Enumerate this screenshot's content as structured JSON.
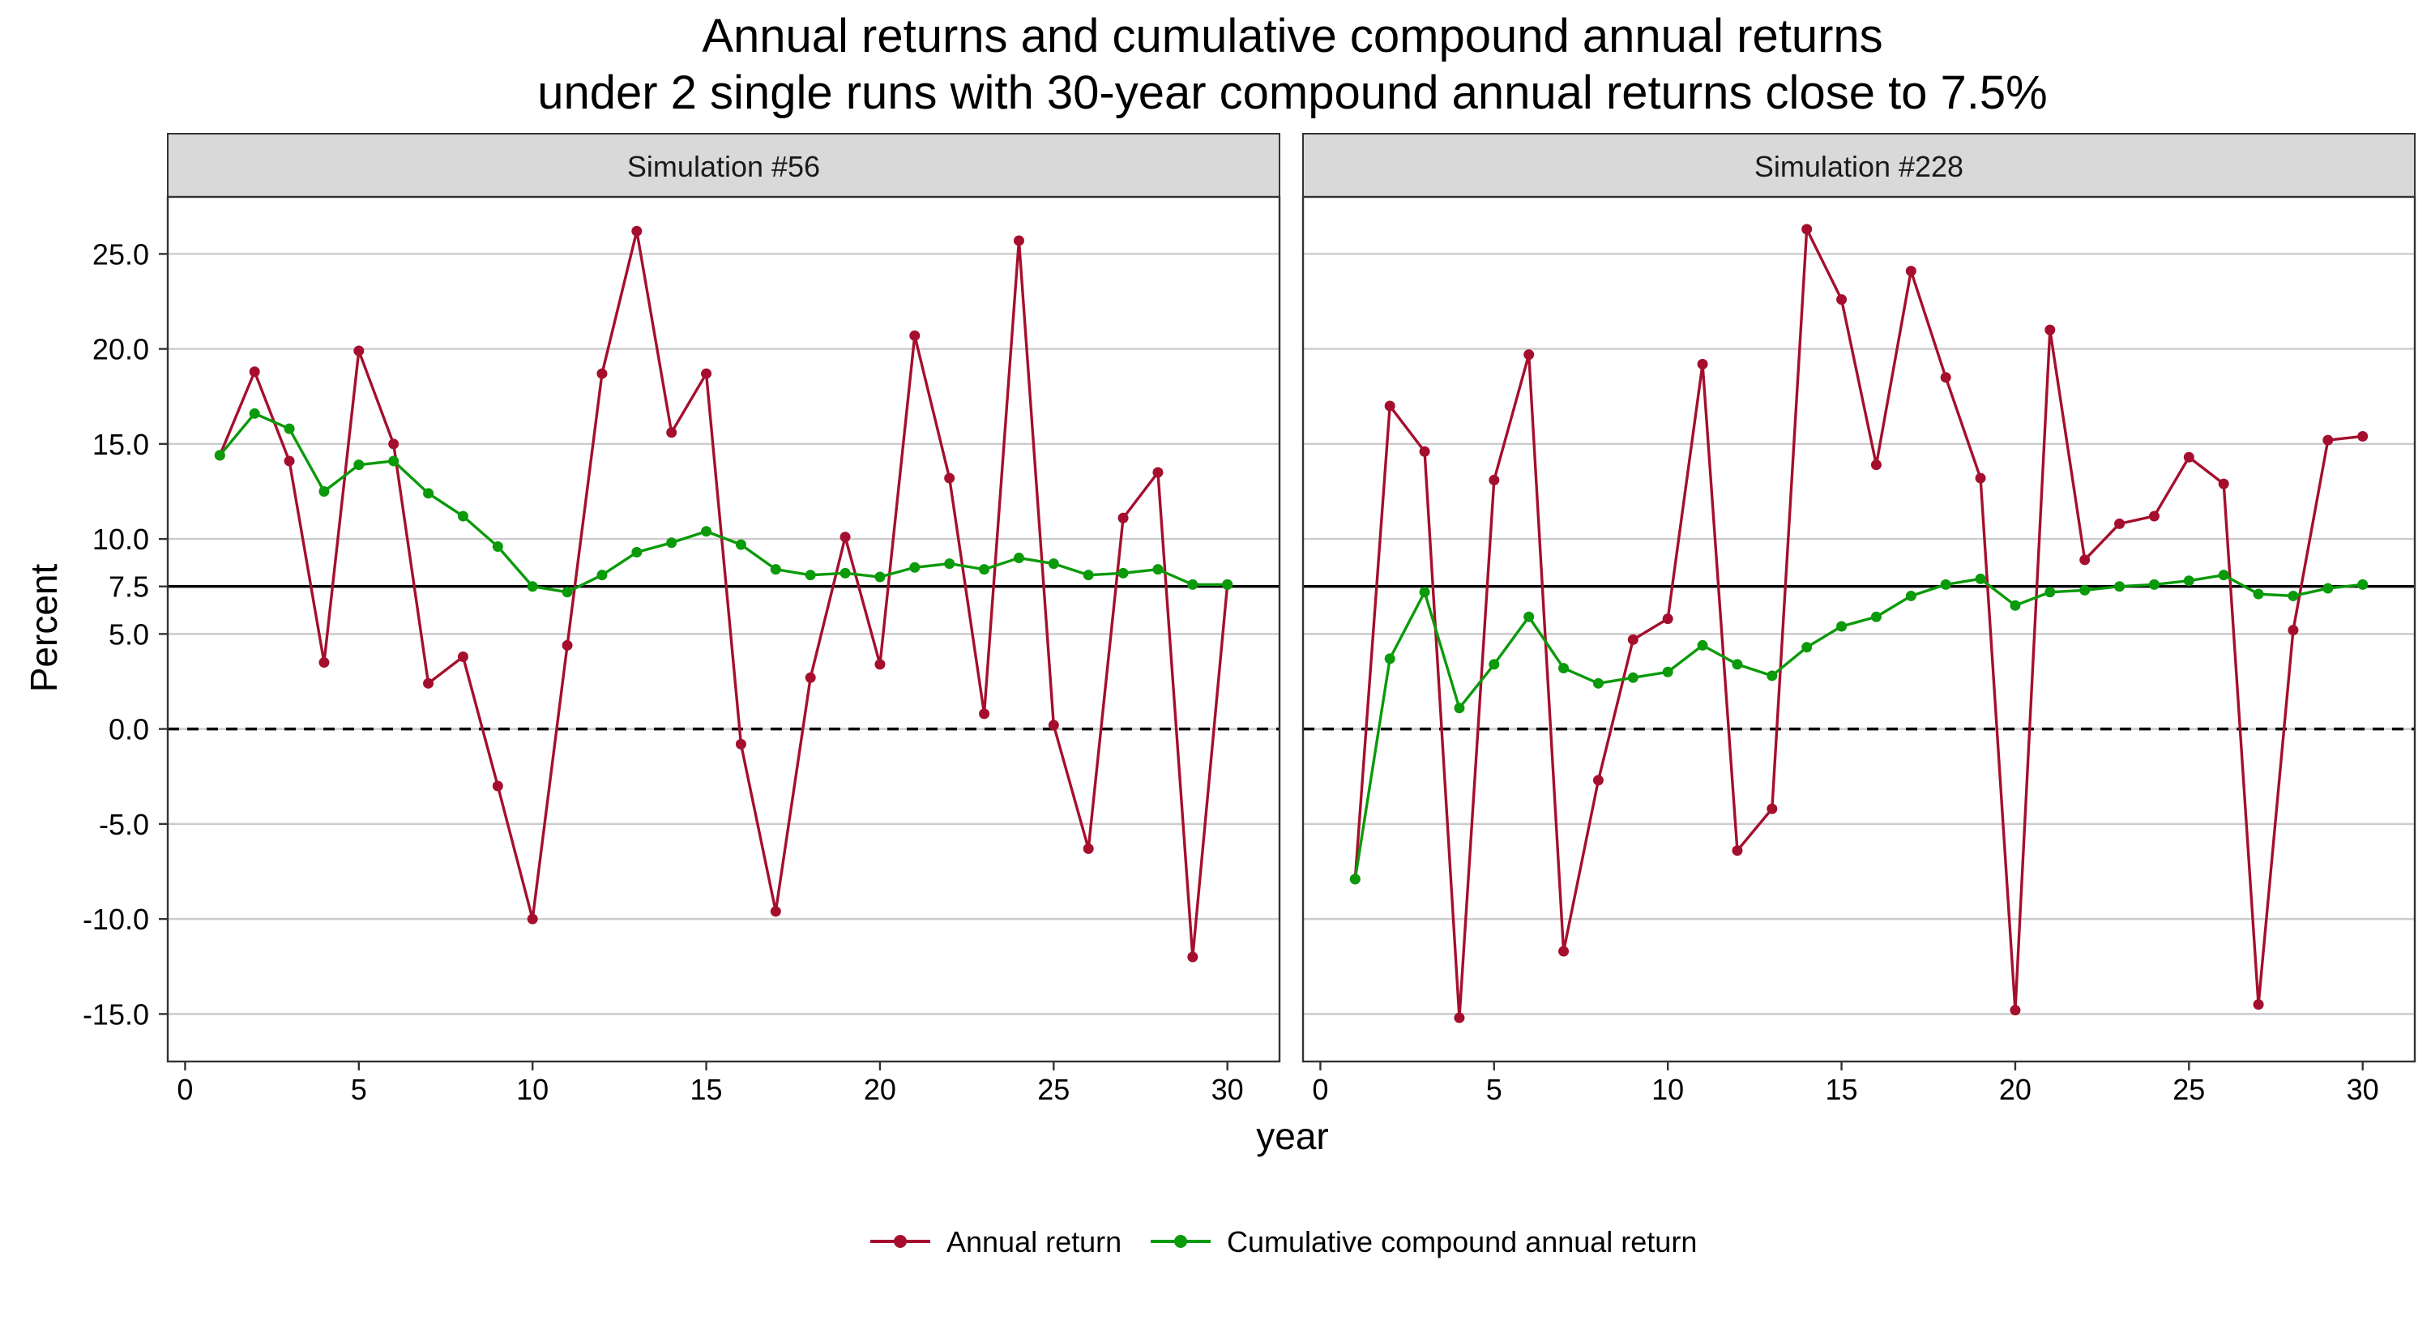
{
  "chart_data": {
    "type": "line",
    "title": "Annual returns and cumulative compound annual returns",
    "subtitle": "under 2 single runs with 30-year compound annual returns close to 7.5%",
    "xlabel": "year",
    "ylabel": "Percent",
    "xlim": [
      -0.5,
      31.5
    ],
    "ylim": [
      -17.5,
      28
    ],
    "x_ticks": [
      0,
      5,
      10,
      15,
      20,
      25,
      30
    ],
    "y_ticks": [
      25.0,
      20.0,
      15.0,
      10.0,
      7.5,
      5.0,
      0.0,
      -5.0,
      -10.0,
      -15.0
    ],
    "y_tick_labels": [
      "25.0",
      "20.0",
      "15.0",
      "10.0",
      "7.5",
      "5.0",
      "0.0",
      "-5.0",
      "-10.0",
      "-15.0"
    ],
    "grid": true,
    "reference_lines": [
      {
        "y": 7.5,
        "style": "solid",
        "color": "#000000"
      },
      {
        "y": 0,
        "style": "dashed",
        "color": "#000000"
      }
    ],
    "legend": {
      "position": "bottom",
      "entries": [
        "Annual return",
        "Cumulative compound annual return"
      ]
    },
    "series_colors": {
      "annual": "#a50f2d",
      "cumulative": "#0a9a0a"
    },
    "x": [
      1,
      2,
      3,
      4,
      5,
      6,
      7,
      8,
      9,
      10,
      11,
      12,
      13,
      14,
      15,
      16,
      17,
      18,
      19,
      20,
      21,
      22,
      23,
      24,
      25,
      26,
      27,
      28,
      29,
      30
    ],
    "panels": [
      {
        "strip": "Simulation #56",
        "series": [
          {
            "name": "Annual return",
            "key": "annual",
            "values": [
              14.4,
              18.8,
              14.1,
              3.5,
              19.9,
              15.0,
              2.4,
              3.8,
              -3.0,
              -10.0,
              4.4,
              18.7,
              26.2,
              15.6,
              18.7,
              -0.8,
              -9.6,
              2.7,
              10.1,
              3.4,
              20.7,
              13.2,
              0.8,
              25.7,
              0.2,
              -6.3,
              11.1,
              13.5,
              -12.0,
              7.6
            ]
          },
          {
            "name": "Cumulative compound annual return",
            "key": "cumulative",
            "values": [
              14.4,
              16.6,
              15.8,
              12.5,
              13.9,
              14.1,
              12.4,
              11.2,
              9.6,
              7.5,
              7.2,
              8.1,
              9.3,
              9.8,
              10.4,
              9.7,
              8.4,
              8.1,
              8.2,
              8.0,
              8.5,
              8.7,
              8.4,
              9.0,
              8.7,
              8.1,
              8.2,
              8.4,
              7.6,
              7.6
            ]
          }
        ]
      },
      {
        "strip": "Simulation #228",
        "series": [
          {
            "name": "Annual return",
            "key": "annual",
            "values": [
              -7.9,
              17.0,
              14.6,
              -15.2,
              13.1,
              19.7,
              -11.7,
              -2.7,
              4.7,
              5.8,
              19.2,
              -6.4,
              -4.2,
              26.3,
              22.6,
              13.9,
              24.1,
              18.5,
              13.2,
              -14.8,
              21.0,
              8.9,
              10.8,
              11.2,
              14.3,
              12.9,
              -14.5,
              5.2,
              15.2,
              15.4
            ]
          },
          {
            "name": "Cumulative compound annual return",
            "key": "cumulative",
            "values": [
              -7.9,
              3.7,
              7.2,
              1.1,
              3.4,
              5.9,
              3.2,
              2.4,
              2.7,
              3.0,
              4.4,
              3.4,
              2.8,
              4.3,
              5.4,
              5.9,
              7.0,
              7.6,
              7.9,
              6.5,
              7.2,
              7.3,
              7.5,
              7.6,
              7.8,
              8.1,
              7.1,
              7.0,
              7.4,
              7.6
            ]
          }
        ]
      }
    ]
  }
}
